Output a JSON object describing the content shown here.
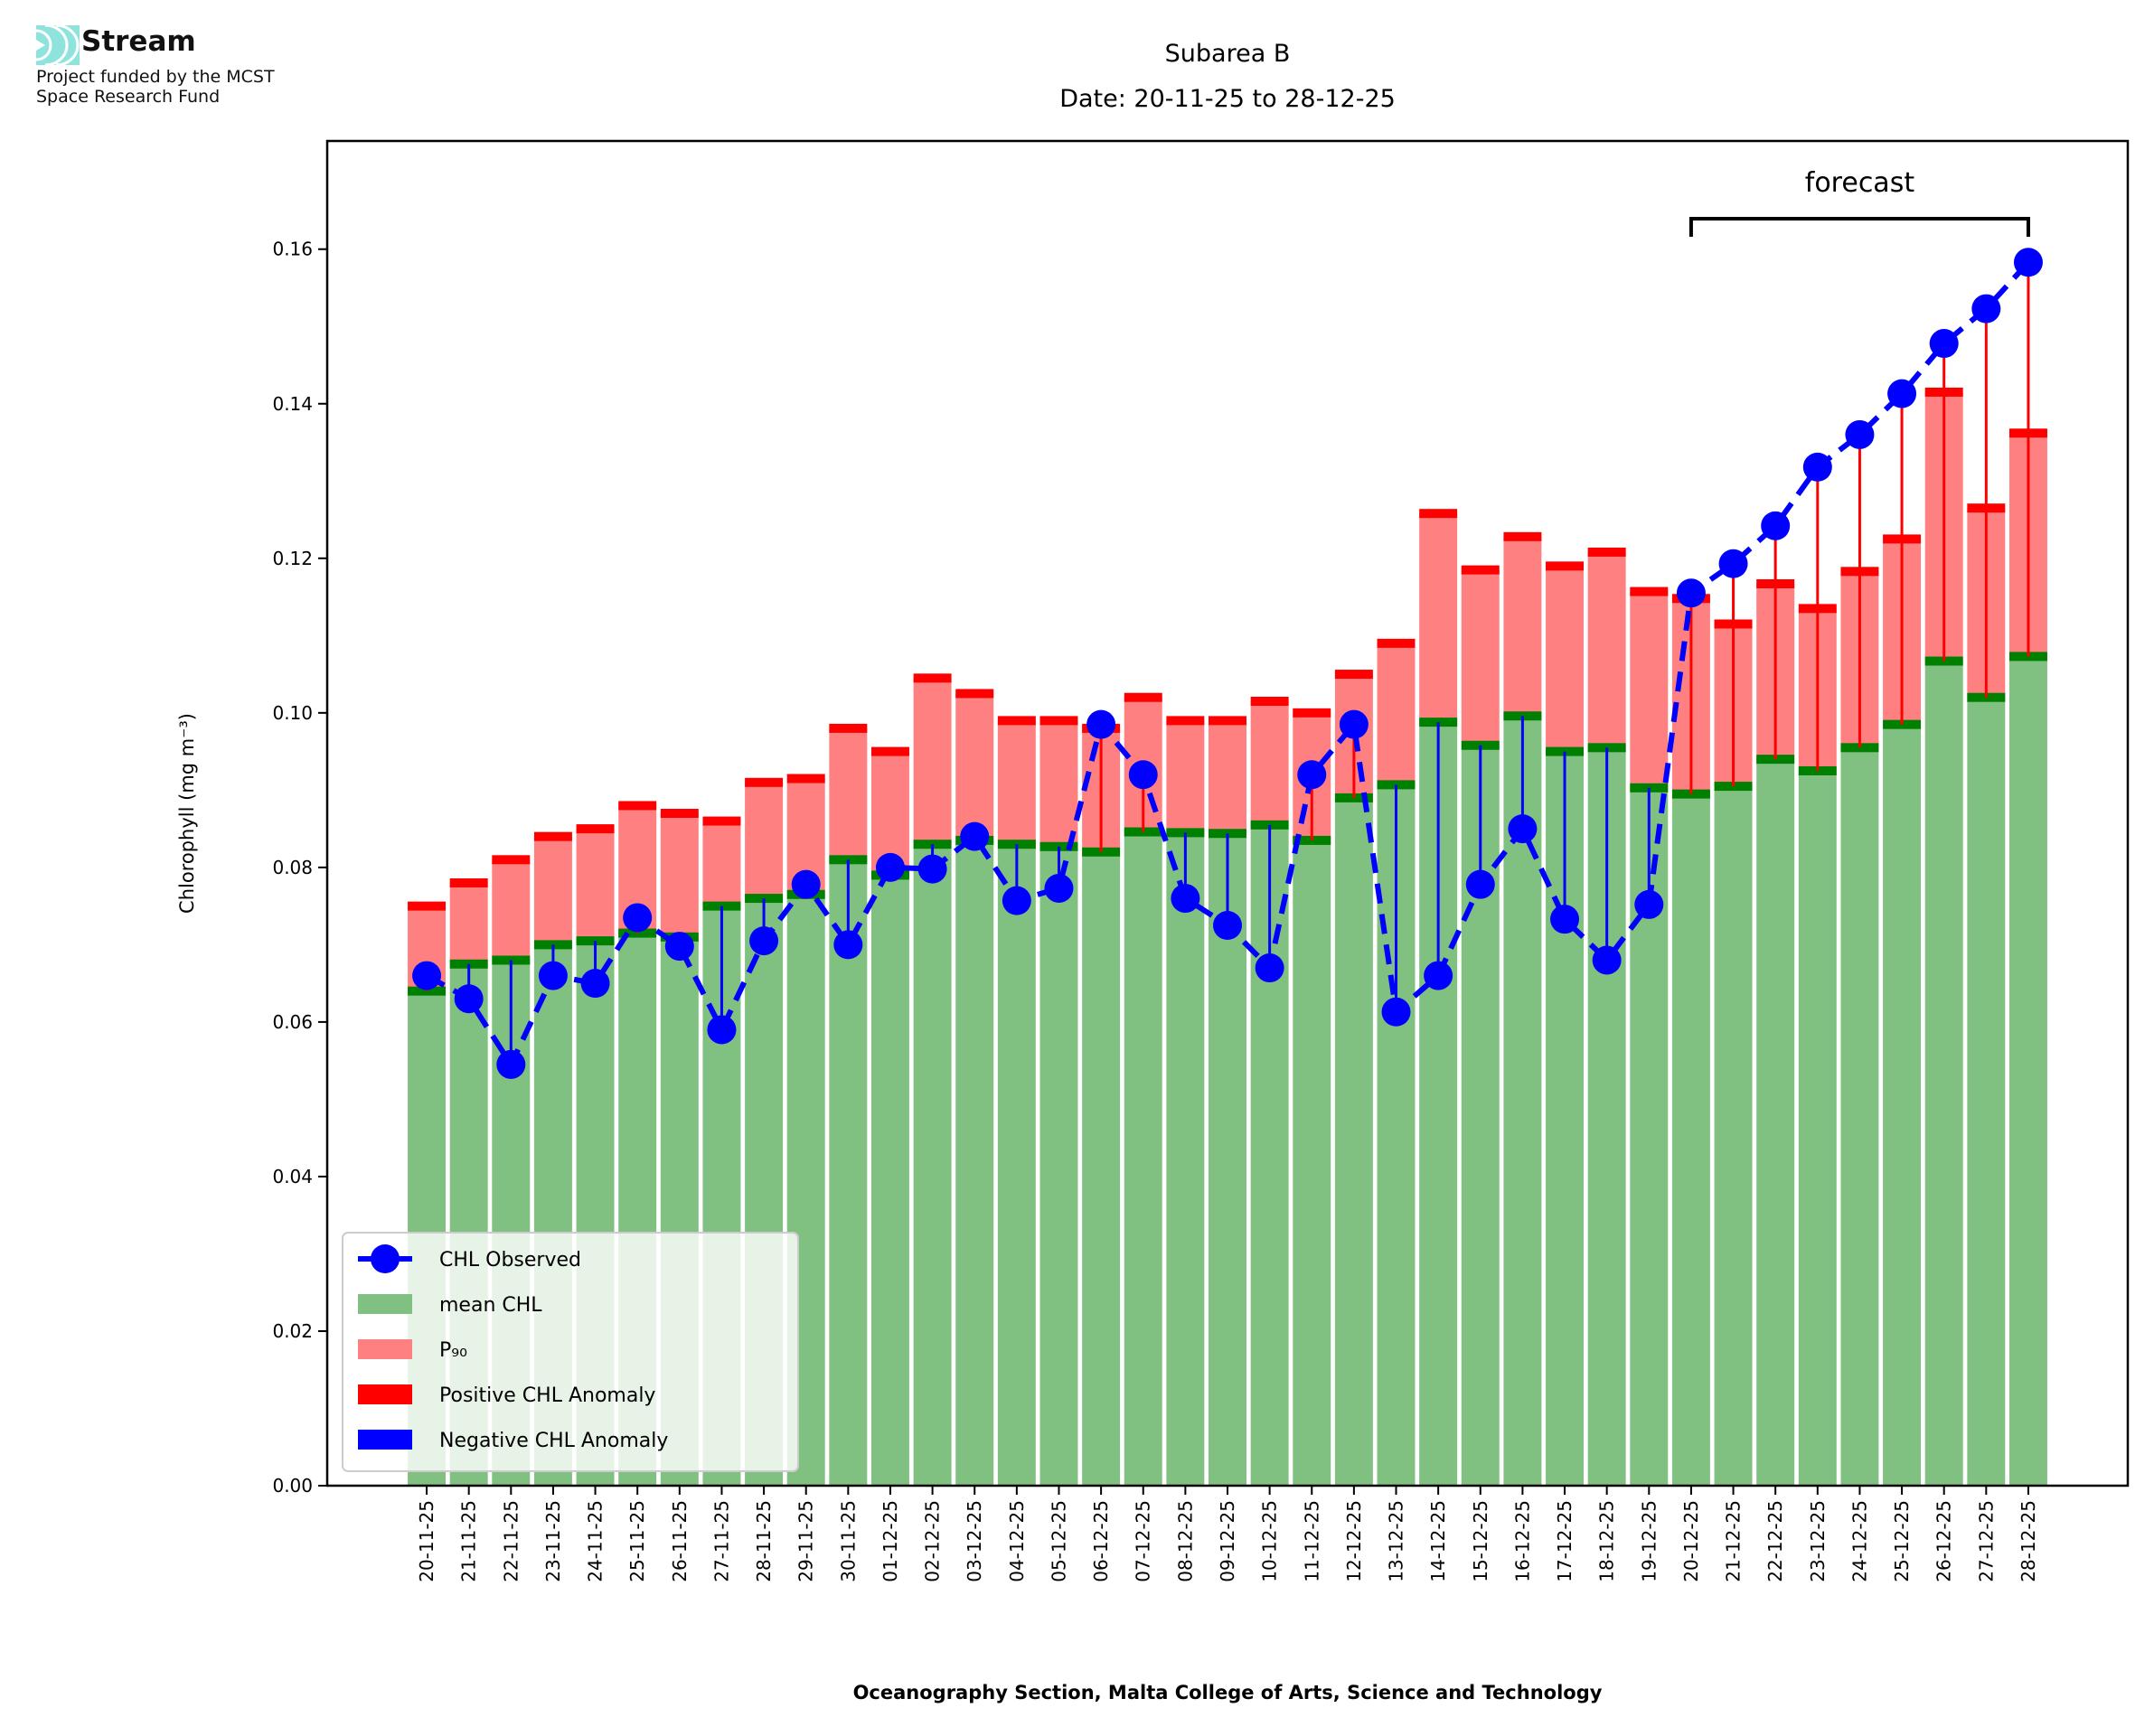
{
  "logo": {
    "name": "Stream",
    "line1": "Project funded by the MCST",
    "line2": "Space Research Fund"
  },
  "chart_data": {
    "type": "bar",
    "title": "Subarea B",
    "subtitle": "Date: 20-11-25 to 28-12-25",
    "xlabel": "Oceanography Section, Malta College of Arts, Science and Technology",
    "ylabel": "Chlorophyll (mg m⁻³)",
    "ylim": [
      0,
      0.174
    ],
    "yticks": [
      "0.00",
      "0.02",
      "0.04",
      "0.06",
      "0.08",
      "0.10",
      "0.12",
      "0.14",
      "0.16"
    ],
    "grid": false,
    "legend_position": "bottom-left",
    "legend": [
      "CHL Observed",
      "mean CHL",
      "P₉₀",
      "Positive CHL Anomaly",
      "Negative CHL Anomaly"
    ],
    "annotation": {
      "text": "forecast",
      "from": "20-12-25",
      "to": "28-12-25"
    },
    "categories": [
      "20-11-25",
      "21-11-25",
      "22-11-25",
      "23-11-25",
      "24-11-25",
      "25-11-25",
      "26-11-25",
      "27-11-25",
      "28-11-25",
      "29-11-25",
      "30-11-25",
      "01-12-25",
      "02-12-25",
      "03-12-25",
      "04-12-25",
      "05-12-25",
      "06-12-25",
      "07-12-25",
      "08-12-25",
      "09-12-25",
      "10-12-25",
      "11-12-25",
      "12-12-25",
      "13-12-25",
      "14-12-25",
      "15-12-25",
      "16-12-25",
      "17-12-25",
      "18-12-25",
      "19-12-25",
      "20-12-25",
      "21-12-25",
      "22-12-25",
      "23-12-25",
      "24-12-25",
      "25-12-25",
      "26-12-25",
      "27-12-25",
      "28-12-25"
    ],
    "series": [
      {
        "name": "CHL Observed",
        "values": [
          0.066,
          0.063,
          0.0545,
          0.066,
          0.065,
          0.0735,
          0.0698,
          0.059,
          0.0705,
          0.0778,
          0.07,
          0.08,
          0.0798,
          0.084,
          0.0757,
          0.0773,
          0.0985,
          0.092,
          0.076,
          0.0725,
          0.067,
          0.092,
          0.0985,
          0.0613,
          0.066,
          0.0778,
          0.085,
          0.0733,
          0.068,
          0.0752,
          0.1155,
          0.1193,
          0.1242,
          0.1318,
          0.136,
          0.1413,
          0.1478,
          0.1523,
          0.1583
        ]
      },
      {
        "name": "mean CHL",
        "values": [
          0.064,
          0.0675,
          0.068,
          0.07,
          0.0705,
          0.0715,
          0.071,
          0.075,
          0.076,
          0.0765,
          0.081,
          0.079,
          0.083,
          0.0835,
          0.083,
          0.0827,
          0.082,
          0.0846,
          0.0845,
          0.0844,
          0.0855,
          0.0835,
          0.089,
          0.0907,
          0.0988,
          0.0958,
          0.0996,
          0.095,
          0.0955,
          0.0903,
          0.0895,
          0.0905,
          0.094,
          0.0925,
          0.0955,
          0.0985,
          0.1067,
          0.102,
          0.1073
        ]
      },
      {
        "name": "P90",
        "values": [
          0.075,
          0.078,
          0.081,
          0.084,
          0.085,
          0.088,
          0.087,
          0.086,
          0.091,
          0.0915,
          0.098,
          0.095,
          0.1045,
          0.1025,
          0.099,
          0.099,
          0.098,
          0.102,
          0.099,
          0.099,
          0.1015,
          0.1,
          0.105,
          0.109,
          0.1258,
          0.1185,
          0.1228,
          0.119,
          0.1208,
          0.1157,
          0.1148,
          0.1115,
          0.1167,
          0.1135,
          0.1183,
          0.1225,
          0.1415,
          0.1265,
          0.1362
        ]
      }
    ],
    "colors": {
      "observed": "#0000ff",
      "mean": "#80c080",
      "mean_edge": "#008000",
      "p90": "#ff8080",
      "p90_edge": "#ff0000",
      "positive": "#ff0000",
      "negative": "#0000ff"
    }
  }
}
